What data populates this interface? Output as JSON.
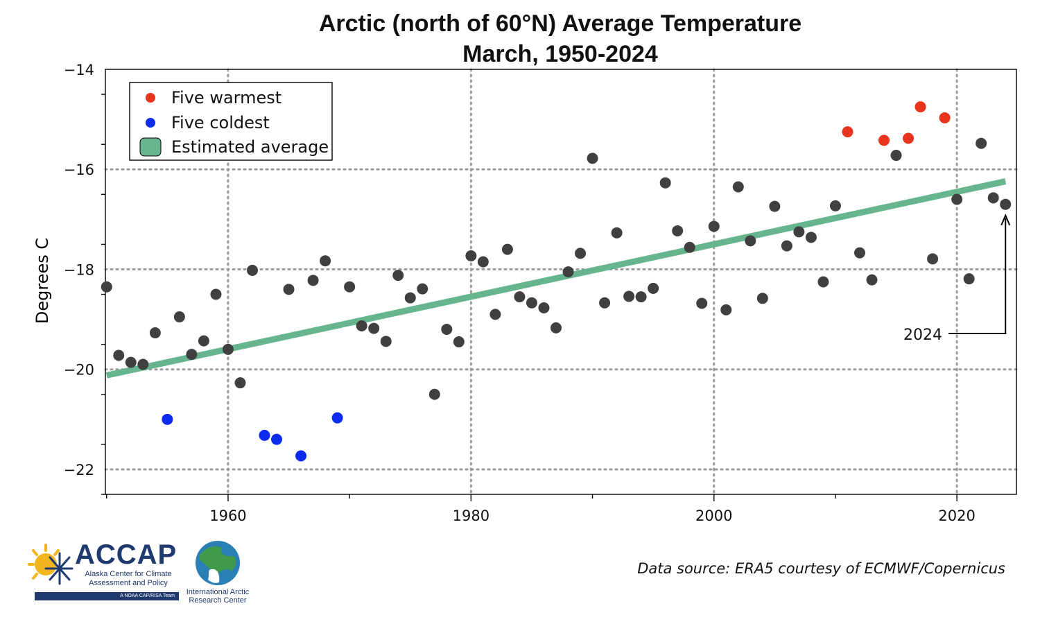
{
  "colors": {
    "points": "#404040",
    "warmest": "#e8341c",
    "coldest": "#0b2cef",
    "trend": "#67b58e",
    "grid": "#9a9a9a"
  },
  "source_text": "Data source: ERA5 courtesy of ECMWF/Copernicus",
  "logos": {
    "accap_name": "ACCAP",
    "accap_subtitle": "Alaska Center for Climate Assessment and Policy",
    "accap_bar": "A NOAA CAP/RISA Team",
    "iarc_name": "International Arctic Research Center"
  },
  "chart_data": {
    "type": "scatter",
    "title": "Arctic (north of 60°N) Average Temperature",
    "subtitle": "March, 1950-2024",
    "xlabel": "",
    "ylabel": "Degrees C",
    "xlim": [
      1949.9,
      2024.9
    ],
    "ylim": [
      -22.5,
      -14
    ],
    "xticks": [
      1960,
      1980,
      2000,
      2020
    ],
    "yticks": [
      -22,
      -20,
      -18,
      -16,
      -14
    ],
    "ytick_labels": [
      "−22",
      "−20",
      "−18",
      "−16",
      "−14"
    ],
    "grid": true,
    "legend_position": "top-left",
    "legend": [
      "Five warmest",
      "Five coldest",
      "Estimated average"
    ],
    "series": [
      {
        "name": "Five warmest",
        "x": [
          2011,
          2014,
          2016,
          2017,
          2019
        ],
        "y": [
          -15.25,
          -15.42,
          -15.38,
          -14.75,
          -14.97
        ]
      },
      {
        "name": "Five coldest",
        "x": [
          1955,
          1963,
          1964,
          1966,
          1969
        ],
        "y": [
          -21.0,
          -21.32,
          -21.4,
          -21.73,
          -20.97
        ]
      },
      {
        "name": "",
        "x": [
          1950,
          1951,
          1952,
          1953,
          1954,
          1956,
          1957,
          1958,
          1959,
          1960,
          1961,
          1962,
          1965,
          1967,
          1968,
          1970,
          1971,
          1972,
          1973,
          1974,
          1975,
          1976,
          1977,
          1978,
          1979,
          1980,
          1981,
          1982,
          1983,
          1984,
          1985,
          1986,
          1987,
          1988,
          1989,
          1990,
          1991,
          1992,
          1993,
          1994,
          1995,
          1996,
          1997,
          1998,
          1999,
          2000,
          2001,
          2002,
          2003,
          2004,
          2005,
          2006,
          2007,
          2008,
          2009,
          2010,
          2012,
          2013,
          2015,
          2018,
          2020,
          2021,
          2022,
          2023,
          2024
        ],
        "y": [
          -18.35,
          -19.72,
          -19.86,
          -19.9,
          -19.27,
          -18.95,
          -19.7,
          -19.43,
          -18.5,
          -19.6,
          -20.27,
          -18.02,
          -18.4,
          -18.22,
          -17.83,
          -18.35,
          -19.13,
          -19.18,
          -19.44,
          -18.12,
          -18.57,
          -18.39,
          -20.5,
          -19.2,
          -19.45,
          -17.73,
          -17.85,
          -18.9,
          -17.6,
          -18.55,
          -18.67,
          -18.77,
          -19.17,
          -18.05,
          -17.68,
          -15.78,
          -18.67,
          -17.27,
          -18.54,
          -18.55,
          -18.38,
          -16.27,
          -17.23,
          -17.56,
          -18.68,
          -17.14,
          -18.81,
          -16.35,
          -17.43,
          -18.58,
          -16.74,
          -17.53,
          -17.25,
          -17.36,
          -18.25,
          -16.73,
          -17.67,
          -18.21,
          -15.72,
          -17.79,
          -16.6,
          -18.19,
          -15.48,
          -16.57,
          -16.7
        ]
      },
      {
        "name": "Estimated average",
        "type": "line",
        "x": [
          1950,
          2024
        ],
        "y": [
          -20.12,
          -16.24
        ]
      }
    ],
    "annotations": [
      {
        "text": "2024",
        "x": 2024,
        "y": -16.7
      }
    ]
  }
}
